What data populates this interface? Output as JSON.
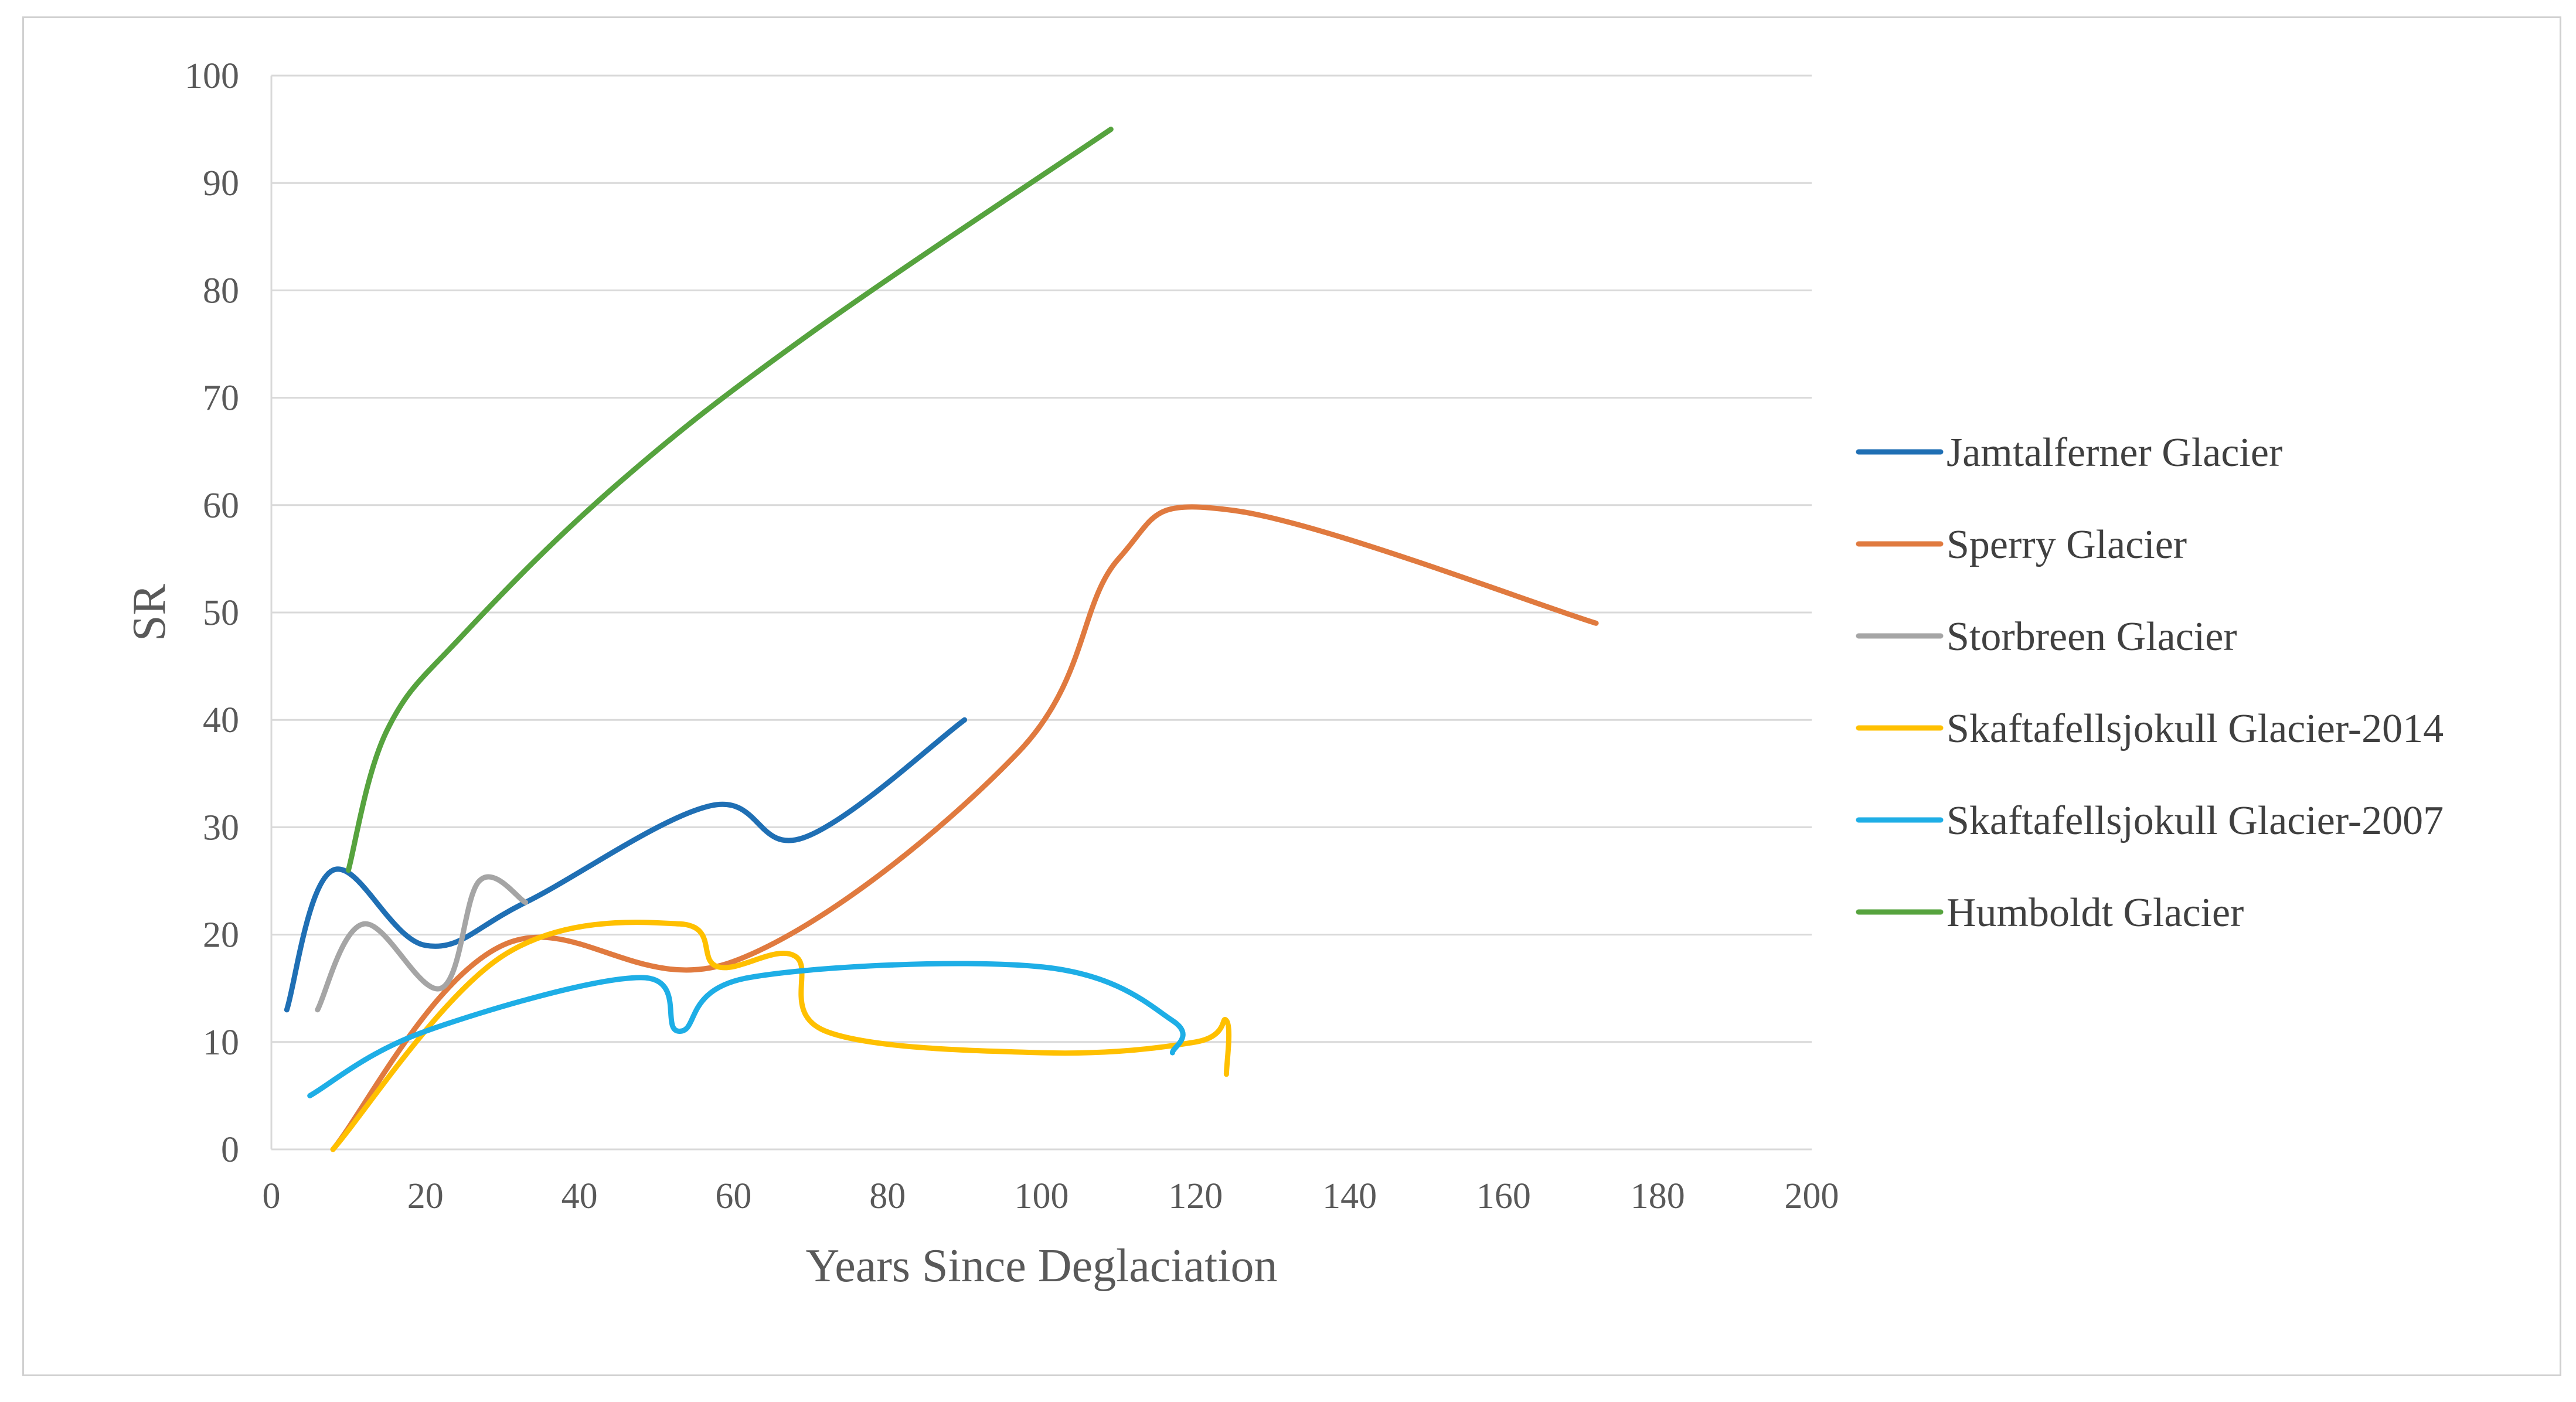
{
  "chart_data": {
    "type": "line",
    "title": "",
    "xlabel": "Years Since Deglaciation",
    "ylabel": "SR",
    "xlim": [
      0,
      200
    ],
    "ylim": [
      0,
      100
    ],
    "xticks": [
      0,
      20,
      40,
      60,
      80,
      100,
      120,
      140,
      160,
      180,
      200
    ],
    "yticks": [
      0,
      10,
      20,
      30,
      40,
      50,
      60,
      70,
      80,
      90,
      100
    ],
    "grid": "horizontal",
    "legend_position": "right",
    "series": [
      {
        "name": "Jamtalferner Glacier",
        "color": "#1f6fb4",
        "x": [
          2,
          8,
          20,
          33,
          57,
          69,
          90
        ],
        "y": [
          13,
          26,
          19,
          23,
          32,
          29,
          40
        ]
      },
      {
        "name": "Sperry Glacier",
        "color": "#e07a3f",
        "x": [
          8,
          30,
          60,
          97,
          110,
          125,
          172
        ],
        "y": [
          0,
          19,
          17.5,
          37,
          55,
          59.5,
          49
        ]
      },
      {
        "name": "Storbreen Glacier",
        "color": "#a5a5a5",
        "x": [
          6,
          12,
          22,
          27,
          33
        ],
        "y": [
          13,
          21,
          15,
          25,
          23
        ]
      },
      {
        "name": "Skaftafellsjokull Glacier-2014",
        "color": "#ffc000",
        "x": [
          8,
          30,
          53,
          58,
          68,
          72,
          100,
          120,
          124,
          124
        ],
        "y": [
          0,
          18,
          21,
          17,
          18,
          11,
          9,
          10,
          12,
          7
        ]
      },
      {
        "name": "Skaftafellsjokull Glacier-2007",
        "color": "#1eaee6",
        "x": [
          5,
          20,
          48,
          53,
          62,
          100,
          117,
          117
        ],
        "y": [
          5,
          11,
          16,
          11,
          16,
          17,
          12,
          9
        ]
      },
      {
        "name": "Humboldt Glacier",
        "color": "#56a33e",
        "x": [
          10,
          15,
          25,
          45,
          70,
          109
        ],
        "y": [
          26,
          39,
          48,
          62,
          76,
          95
        ]
      }
    ]
  }
}
